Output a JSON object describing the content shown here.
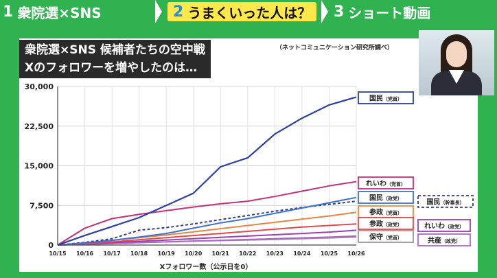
{
  "tabs": [
    {
      "num": "1",
      "label": "衆院選×SNS",
      "active": false
    },
    {
      "num": "2",
      "label": "うまくいった人は？",
      "active": true
    },
    {
      "num": "3",
      "label": "ショート動画",
      "active": false
    }
  ],
  "title_lines": [
    "衆院選×SNS 候補者たちの空中戦",
    "Xのフォロワーを増やしたのは…"
  ],
  "source": "（ネットコミュニケーション研究所調べ）",
  "chart_data": {
    "type": "line",
    "title": "衆院選×SNS 候補者たちの空中戦 Xのフォロワーを増やしたのは…",
    "xlabel": "Xフォロワー数（公示日を0）",
    "ylabel": "",
    "x": [
      "10/15",
      "10/16",
      "10/17",
      "10/18",
      "10/19",
      "10/20",
      "10/21",
      "10/22",
      "10/23",
      "10/24",
      "10/25",
      "10/26"
    ],
    "ylim": [
      0,
      30000
    ],
    "yticks": [
      "0",
      "7,500",
      "15,000",
      "22,500",
      "30,000"
    ],
    "grid": true,
    "series": [
      {
        "name": "国民（党首）",
        "color": "#2b3fa8",
        "dash": false,
        "values": [
          0,
          1800,
          3500,
          5200,
          7500,
          9800,
          14800,
          16500,
          21000,
          24000,
          26500,
          28000
        ]
      },
      {
        "name": "れいわ（党首）",
        "color": "#c4307a",
        "dash": false,
        "values": [
          0,
          3200,
          5000,
          5800,
          6500,
          7200,
          7800,
          8300,
          9200,
          10200,
          11200,
          12000
        ]
      },
      {
        "name": "国民（政党）",
        "color": "#3f6fd0",
        "dash": false,
        "values": [
          0,
          400,
          900,
          1500,
          2200,
          3200,
          4200,
          5000,
          6000,
          7000,
          8000,
          9000
        ]
      },
      {
        "name": "国民（幹事長）",
        "color": "#2b3f8a",
        "dash": true,
        "values": [
          0,
          500,
          1200,
          2800,
          3300,
          4000,
          4800,
          5600,
          6400,
          7100,
          7700,
          8300
        ]
      },
      {
        "name": "参政（党首）",
        "color": "#e98540",
        "dash": false,
        "values": [
          0,
          400,
          900,
          1400,
          1900,
          2500,
          3100,
          3700,
          4300,
          4900,
          5500,
          6200
        ]
      },
      {
        "name": "参政（政党）",
        "color": "#e04a4a",
        "dash": false,
        "values": [
          0,
          300,
          600,
          1000,
          1400,
          1800,
          2200,
          2600,
          3000,
          3400,
          3700,
          4000
        ]
      },
      {
        "name": "れいわ（政党）",
        "color": "#9a3fb0",
        "dash": false,
        "values": [
          0,
          200,
          450,
          700,
          950,
          1200,
          1450,
          1700,
          1950,
          2200,
          2450,
          2800
        ]
      },
      {
        "name": "共産（政党）",
        "color": "#b064c8",
        "dash": false,
        "values": [
          0,
          150,
          300,
          450,
          600,
          750,
          900,
          1050,
          1200,
          1350,
          1500,
          1700
        ]
      },
      {
        "name": "保守（党首）",
        "color": "#999999",
        "dash": false,
        "values": [
          0,
          150,
          300,
          450,
          600,
          750,
          850,
          950,
          1050,
          1200,
          1350,
          1500
        ]
      }
    ]
  },
  "labels": [
    {
      "text": "国民",
      "suffix": "（党首）",
      "series": 0
    },
    {
      "text": "れいわ",
      "suffix": "（党首）",
      "series": 1
    },
    {
      "text": "国民",
      "suffix": "（政党）",
      "series": 2
    },
    {
      "text": "国民",
      "suffix": "（幹事長）",
      "series": 3
    },
    {
      "text": "参政",
      "suffix": "（党首）",
      "series": 4
    },
    {
      "text": "参政",
      "suffix": "（政党）",
      "series": 5
    },
    {
      "text": "れいわ",
      "suffix": "（政党）",
      "series": 6
    },
    {
      "text": "保守",
      "suffix": "（党首）",
      "series": 8
    },
    {
      "text": "共産",
      "suffix": "（政党）",
      "series": 7
    }
  ]
}
